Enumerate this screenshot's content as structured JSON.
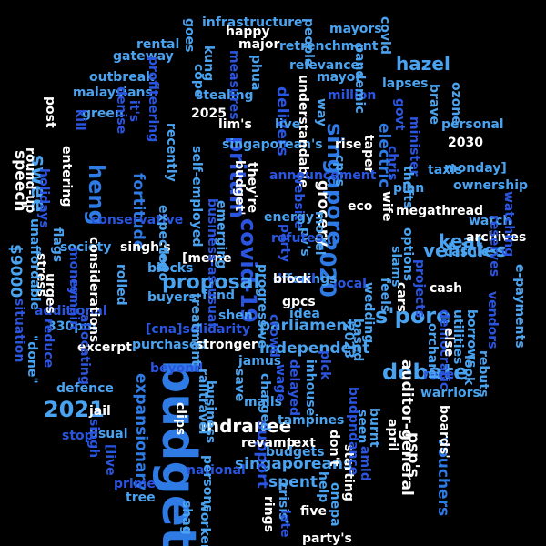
{
  "palette": {
    "background": "#000000",
    "white": "#ffffff",
    "light_blue": "#4aa3f0",
    "mid_blue": "#2f7be6",
    "blue": "#2a55e0",
    "dark_blue": "#2f44c9",
    "violet": "#4b3fc4"
  },
  "words": [
    {
      "text": "budget",
      "color": "mid_blue"
    },
    {
      "text": "debate",
      "color": "light_blue"
    },
    {
      "text": "singapore",
      "color": "mid_blue"
    },
    {
      "text": "covid-19",
      "color": "blue"
    },
    {
      "text": "2021",
      "color": "light_blue"
    },
    {
      "text": "2020",
      "color": "mid_blue"
    },
    {
      "text": "heng",
      "color": "mid_blue"
    },
    {
      "text": "speech",
      "color": "white"
    },
    {
      "text": "pritam",
      "color": "blue"
    },
    {
      "text": "s'pore",
      "color": "light_blue"
    },
    {
      "text": "vehicles",
      "color": "light_blue"
    },
    {
      "text": "keat",
      "color": "light_blue"
    },
    {
      "text": "swee",
      "color": "light_blue"
    },
    {
      "text": "hazel",
      "color": "light_blue"
    },
    {
      "text": "proposal",
      "color": "light_blue"
    },
    {
      "text": "indranee",
      "color": "white"
    },
    {
      "text": "independent",
      "color": "light_blue"
    },
    {
      "text": "parliament",
      "color": "light_blue"
    },
    {
      "text": "singaporeans",
      "color": "light_blue"
    },
    {
      "text": "expansionary",
      "color": "mid_blue"
    },
    {
      "text": "grocery",
      "color": "white"
    },
    {
      "text": "$9000",
      "color": "light_blue"
    },
    {
      "text": "fortitude",
      "color": "mid_blue"
    },
    {
      "text": "electric",
      "color": "mid_blue"
    },
    {
      "text": "vouchers",
      "color": "mid_blue"
    },
    {
      "text": "spent",
      "color": "light_blue"
    },
    {
      "text": "support",
      "color": "blue"
    },
    {
      "text": "psp's",
      "color": "white"
    },
    {
      "text": "auditor-general",
      "color": "white"
    },
    {
      "text": "infrastructure",
      "color": "light_blue"
    },
    {
      "text": "retrenchment",
      "color": "light_blue"
    },
    {
      "text": "relevance",
      "color": "light_blue"
    },
    {
      "text": "gateway",
      "color": "light_blue"
    },
    {
      "text": "rental",
      "color": "light_blue"
    },
    {
      "text": "outbreak",
      "color": "light_blue"
    },
    {
      "text": "malaysians",
      "color": "light_blue"
    },
    {
      "text": "green",
      "color": "light_blue"
    },
    {
      "text": "2025",
      "color": "white"
    },
    {
      "text": "stealing",
      "color": "light_blue"
    },
    {
      "text": "delivers",
      "color": "blue"
    },
    {
      "text": "lim's",
      "color": "white"
    },
    {
      "text": "singaporean's",
      "color": "light_blue"
    },
    {
      "text": "conservative",
      "color": "blue"
    },
    {
      "text": "society",
      "color": "light_blue"
    },
    {
      "text": "singh's",
      "color": "white"
    },
    {
      "text": "blocks",
      "color": "light_blue"
    },
    {
      "text": "buyers",
      "color": "light_blue"
    },
    {
      "text": "fund",
      "color": "light_blue"
    },
    {
      "text": "shen",
      "color": "light_blue"
    },
    {
      "text": "[cna]solidarity",
      "color": "blue"
    },
    {
      "text": "purchased",
      "color": "light_blue"
    },
    {
      "text": "stronger",
      "color": "white"
    },
    {
      "text": "additional",
      "color": "blue"
    },
    {
      "text": "330pm",
      "color": "light_blue"
    },
    {
      "text": "defence",
      "color": "light_blue"
    },
    {
      "text": "excerpt",
      "color": "white"
    },
    {
      "text": "jail",
      "color": "white"
    },
    {
      "text": "usual",
      "color": "light_blue"
    },
    {
      "text": "stop",
      "color": "blue"
    },
    {
      "text": "beyond",
      "color": "blue"
    },
    {
      "text": "jamus",
      "color": "light_blue"
    },
    {
      "text": "malls",
      "color": "light_blue"
    },
    {
      "text": "tampines",
      "color": "light_blue"
    },
    {
      "text": "revamp",
      "color": "white"
    },
    {
      "text": "text",
      "color": "white"
    },
    {
      "text": "budgets",
      "color": "light_blue"
    },
    {
      "text": "national",
      "color": "blue"
    },
    {
      "text": "prime",
      "color": "blue"
    },
    {
      "text": "tree",
      "color": "light_blue"
    },
    {
      "text": "gpcs",
      "color": "white"
    },
    {
      "text": "cash",
      "color": "white"
    },
    {
      "text": "idea",
      "color": "light_blue"
    },
    {
      "text": "mayors",
      "color": "light_blue"
    },
    {
      "text": "mayor",
      "color": "light_blue"
    },
    {
      "text": "million",
      "color": "blue"
    },
    {
      "text": "lapses",
      "color": "light_blue"
    },
    {
      "text": "personal",
      "color": "light_blue"
    },
    {
      "text": "2030",
      "color": "white"
    },
    {
      "text": "monday]",
      "color": "light_blue"
    },
    {
      "text": "ownership",
      "color": "light_blue"
    },
    {
      "text": "taxis",
      "color": "light_blue"
    },
    {
      "text": "megathread",
      "color": "white"
    },
    {
      "text": "plan",
      "color": "light_blue"
    },
    {
      "text": "watch",
      "color": "light_blue"
    },
    {
      "text": "archives",
      "color": "white"
    },
    {
      "text": "live",
      "color": "light_blue"
    },
    {
      "text": "major",
      "color": "white"
    },
    {
      "text": "happy",
      "color": "white"
    },
    {
      "text": "rise",
      "color": "white"
    },
    {
      "text": "understandable",
      "color": "white"
    },
    {
      "text": "post",
      "color": "white"
    },
    {
      "text": "entering",
      "color": "white"
    },
    {
      "text": "stress",
      "color": "white"
    },
    {
      "text": "round-up",
      "color": "white"
    },
    {
      "text": "unaffordable",
      "color": "light_blue"
    },
    {
      "text": "flags",
      "color": "light_blue"
    },
    {
      "text": "reduce",
      "color": "blue"
    },
    {
      "text": "urges",
      "color": "white"
    },
    {
      "text": "situation",
      "color": "blue"
    },
    {
      "text": "\"done\"",
      "color": "light_blue"
    },
    {
      "text": "holidays",
      "color": "blue"
    },
    {
      "text": "kill",
      "color": "blue"
    },
    {
      "text": "singh",
      "color": "blue"
    },
    {
      "text": "[live",
      "color": "blue"
    },
    {
      "text": "allocating",
      "color": "blue"
    },
    {
      "text": "remain",
      "color": "blue"
    },
    {
      "text": "money",
      "color": "blue"
    },
    {
      "text": "considerations",
      "color": "white"
    },
    {
      "text": "rolled",
      "color": "light_blue"
    },
    {
      "text": "expected",
      "color": "light_blue"
    },
    {
      "text": "logo",
      "color": "light_blue"
    },
    {
      "text": "budget'",
      "color": "white"
    },
    {
      "text": "they're",
      "color": "white"
    },
    {
      "text": "[meme",
      "color": "white"
    },
    {
      "text": "treatment",
      "color": "light_blue"
    },
    {
      "text": "emerging",
      "color": "light_blue"
    },
    {
      "text": "railtravel",
      "color": "light_blue"
    },
    {
      "text": "clips",
      "color": "white"
    },
    {
      "text": "business",
      "color": "light_blue"
    },
    {
      "text": "workers",
      "color": "light_blue"
    },
    {
      "text": "persons",
      "color": "light_blue"
    },
    {
      "text": "shag",
      "color": "light_blue"
    },
    {
      "text": "rings",
      "color": "white"
    },
    {
      "text": "five",
      "color": "white"
    },
    {
      "text": "party's",
      "color": "white"
    },
    {
      "text": "crisis'",
      "color": "light_blue"
    },
    {
      "text": "late",
      "color": "blue"
    },
    {
      "text": "help",
      "color": "light_blue"
    },
    {
      "text": "onepa",
      "color": "light_blue"
    },
    {
      "text": "don't",
      "color": "white"
    },
    {
      "text": "starting",
      "color": "white"
    },
    {
      "text": "amid",
      "color": "blue"
    },
    {
      "text": "budpndance",
      "color": "blue"
    },
    {
      "text": "seen",
      "color": "light_blue"
    },
    {
      "text": "burnt",
      "color": "light_blue"
    },
    {
      "text": "april",
      "color": "white"
    },
    {
      "text": "boards'",
      "color": "white"
    },
    {
      "text": "race",
      "color": "blue"
    },
    {
      "text": "warriors",
      "color": "light_blue"
    },
    {
      "text": "look",
      "color": "light_blue"
    },
    {
      "text": "rebuts",
      "color": "light_blue"
    },
    {
      "text": "vendors",
      "color": "blue"
    },
    {
      "text": "e-payments",
      "color": "light_blue"
    },
    {
      "text": "borrows",
      "color": "light_blue"
    },
    {
      "text": "utilities",
      "color": "light_blue"
    },
    {
      "text": "democratic",
      "color": "blue"
    },
    {
      "text": "orchard",
      "color": "light_blue"
    },
    {
      "text": "else",
      "color": "white"
    },
    {
      "text": "based",
      "color": "light_blue"
    },
    {
      "text": "wedding",
      "color": "light_blue"
    },
    {
      "text": "2023",
      "color": "light_blue"
    },
    {
      "text": "pick",
      "color": "blue"
    },
    {
      "text": "inhouse",
      "color": "light_blue"
    },
    {
      "text": "delayed",
      "color": "blue"
    },
    {
      "text": "wage",
      "color": "blue"
    },
    {
      "text": "charged",
      "color": "light_blue"
    },
    {
      "text": "save",
      "color": "light_blue"
    },
    {
      "text": "crowd",
      "color": "blue"
    },
    {
      "text": "local",
      "color": "blue"
    },
    {
      "text": "feels",
      "color": "light_blue"
    },
    {
      "text": "cars",
      "color": "white"
    },
    {
      "text": "slams",
      "color": "light_blue"
    },
    {
      "text": "options",
      "color": "light_blue"
    },
    {
      "text": "projects",
      "color": "blue"
    },
    {
      "text": "cashless",
      "color": "light_blue"
    },
    {
      "text": "reserves",
      "color": "blue"
    },
    {
      "text": "watching",
      "color": "blue"
    },
    {
      "text": "wife",
      "color": "white"
    },
    {
      "text": "model",
      "color": "light_blue"
    },
    {
      "text": "pv's",
      "color": "light_blue"
    },
    {
      "text": "party",
      "color": "blue"
    },
    {
      "text": "website",
      "color": "blue"
    },
    {
      "text": "refutes",
      "color": "blue"
    },
    {
      "text": "progressive",
      "color": "light_blue"
    },
    {
      "text": "energy",
      "color": "light_blue"
    },
    {
      "text": "eco",
      "color": "white"
    },
    {
      "text": "cpcs",
      "color": "light_blue"
    },
    {
      "text": "way",
      "color": "light_blue"
    },
    {
      "text": "taper",
      "color": "white"
    },
    {
      "text": "govt",
      "color": "blue"
    },
    {
      "text": "minister",
      "color": "blue"
    },
    {
      "text": "chris",
      "color": "blue"
    },
    {
      "text": "thefts",
      "color": "light_blue"
    },
    {
      "text": "brave",
      "color": "light_blue"
    },
    {
      "text": "ozone",
      "color": "light_blue"
    },
    {
      "text": "pandemic",
      "color": "light_blue"
    },
    {
      "text": "covid",
      "color": "light_blue"
    },
    {
      "text": "people",
      "color": "light_blue"
    },
    {
      "text": "goes",
      "color": "light_blue"
    },
    {
      "text": "kung",
      "color": "light_blue"
    },
    {
      "text": "cope",
      "color": "light_blue"
    },
    {
      "text": "measures",
      "color": "blue"
    },
    {
      "text": "phua",
      "color": "light_blue"
    },
    {
      "text": "it's",
      "color": "blue"
    },
    {
      "text": "denise",
      "color": "blue"
    },
    {
      "text": "profiteering",
      "color": "blue"
    },
    {
      "text": "recently",
      "color": "light_blue"
    },
    {
      "text": "self-employed",
      "color": "light_blue"
    },
    {
      "text": "business-as-usual",
      "color": "blue"
    },
    {
      "text": "announcement",
      "color": "blue"
    },
    {
      "text": "offerings",
      "color": "light_blue"
    },
    {
      "text": "diesel",
      "color": "blue"
    },
    {
      "text": "block",
      "color": "white"
    }
  ]
}
